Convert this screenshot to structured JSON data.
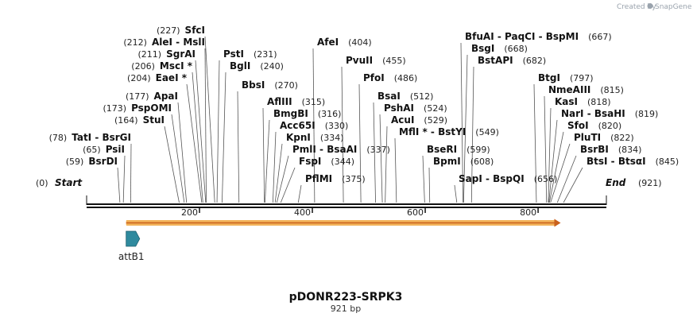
{
  "credit": {
    "prefix": "Created by",
    "brand": "SnapGene"
  },
  "map": {
    "name": "pDONR223-SRPK3",
    "length_label": "921 bp",
    "length": 921,
    "axis_ticks": [
      {
        "value": 200,
        "label": "200"
      },
      {
        "value": 400,
        "label": "400"
      },
      {
        "value": 600,
        "label": "600"
      },
      {
        "value": 800,
        "label": "800"
      }
    ],
    "start": {
      "label": "Start",
      "pos": 0,
      "pos_label": "(0)"
    },
    "end": {
      "label": "End",
      "pos": 921,
      "pos_label": "(921)"
    }
  },
  "enzymes_left": [
    {
      "pos": 227,
      "pos_label": "(227)",
      "names": "SfcI"
    },
    {
      "pos": 212,
      "pos_label": "(212)",
      "names": "AleI  -  MslI"
    },
    {
      "pos": 211,
      "pos_label": "(211)",
      "names": "SgrAI"
    },
    {
      "pos": 206,
      "pos_label": "(206)",
      "names": "MscI *"
    },
    {
      "pos": 204,
      "pos_label": "(204)",
      "names": "EaeI *"
    },
    {
      "pos": 177,
      "pos_label": "(177)",
      "names": "ApaI"
    },
    {
      "pos": 173,
      "pos_label": "(173)",
      "names": "PspOMI"
    },
    {
      "pos": 164,
      "pos_label": "(164)",
      "names": "StuI"
    },
    {
      "pos": 78,
      "pos_label": "(78)",
      "names": "TatI  -  BsrGI"
    },
    {
      "pos": 65,
      "pos_label": "(65)",
      "names": "PsiI"
    },
    {
      "pos": 59,
      "pos_label": "(59)",
      "names": "BsrDI"
    }
  ],
  "enzymes_right": [
    {
      "pos": 231,
      "pos_label": "(231)",
      "names": "PstI"
    },
    {
      "pos": 240,
      "pos_label": "(240)",
      "names": "BglI"
    },
    {
      "pos": 270,
      "pos_label": "(270)",
      "names": "BbsI"
    },
    {
      "pos": 404,
      "pos_label": "(404)",
      "names": "AfeI"
    },
    {
      "pos": 455,
      "pos_label": "(455)",
      "names": "PvuII"
    },
    {
      "pos": 486,
      "pos_label": "(486)",
      "names": "PfoI"
    },
    {
      "pos": 315,
      "pos_label": "(315)",
      "names": "AflIII"
    },
    {
      "pos": 316,
      "pos_label": "(316)",
      "names": "BmgBI"
    },
    {
      "pos": 330,
      "pos_label": "(330)",
      "names": "Acc65I"
    },
    {
      "pos": 334,
      "pos_label": "(334)",
      "names": "KpnI"
    },
    {
      "pos": 337,
      "pos_label": "(337)",
      "names": "PmlI  -  BsaAI"
    },
    {
      "pos": 344,
      "pos_label": "(344)",
      "names": "FspI"
    },
    {
      "pos": 375,
      "pos_label": "(375)",
      "names": "PflMI"
    },
    {
      "pos": 512,
      "pos_label": "(512)",
      "names": "BsaI"
    },
    {
      "pos": 524,
      "pos_label": "(524)",
      "names": "PshAI"
    },
    {
      "pos": 529,
      "pos_label": "(529)",
      "names": "AcuI"
    },
    {
      "pos": 549,
      "pos_label": "(549)",
      "names": "MflI *  -  BstYI"
    },
    {
      "pos": 599,
      "pos_label": "(599)",
      "names": "BseRI"
    },
    {
      "pos": 608,
      "pos_label": "(608)",
      "names": "BpmI"
    },
    {
      "pos": 667,
      "pos_label": "(667)",
      "names": "BfuAI  -  PaqCI  -  BspMI"
    },
    {
      "pos": 668,
      "pos_label": "(668)",
      "names": "BsgI"
    },
    {
      "pos": 682,
      "pos_label": "(682)",
      "names": "BstAPI"
    },
    {
      "pos": 656,
      "pos_label": "(656)",
      "names": "SapI  -  BspQI"
    },
    {
      "pos": 797,
      "pos_label": "(797)",
      "names": "BtgI"
    },
    {
      "pos": 815,
      "pos_label": "(815)",
      "names": "NmeAIII"
    },
    {
      "pos": 818,
      "pos_label": "(818)",
      "names": "KasI"
    },
    {
      "pos": 819,
      "pos_label": "(819)",
      "names": "NarI  -  BsaHI"
    },
    {
      "pos": 820,
      "pos_label": "(820)",
      "names": "SfoI"
    },
    {
      "pos": 822,
      "pos_label": "(822)",
      "names": "PluTI"
    },
    {
      "pos": 834,
      "pos_label": "(834)",
      "names": "BsrBI"
    },
    {
      "pos": 845,
      "pos_label": "(845)",
      "names": "BtsI  -  BtsαI"
    }
  ],
  "features": [
    {
      "name": "attB1",
      "start": 70,
      "end": 94,
      "direction": "forward",
      "color": "#2f8a9e"
    }
  ],
  "orf": {
    "start": 70,
    "end": 840,
    "direction": "forward",
    "color": "#f2b35a",
    "line_color": "#c9611c"
  }
}
